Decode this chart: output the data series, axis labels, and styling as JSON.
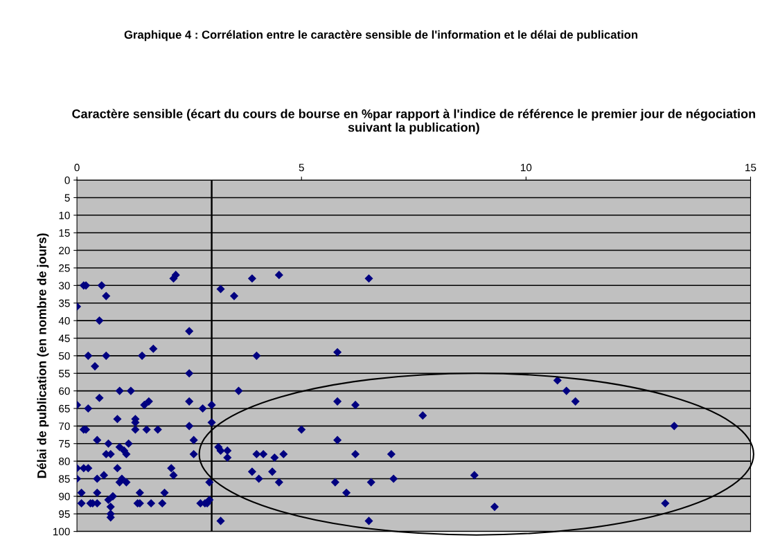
{
  "chart_data": {
    "type": "scatter",
    "title": "Graphique 4 : Corrélation entre le caractère sensible de l'information et le délai de publication",
    "xlabel": "Caractère sensible (écart du cours de bourse en %par rapport à l'indice de référence le premier jour de négociation suivant la publication)",
    "ylabel": "Délai de publication (en nombre de jours)",
    "series": [
      {
        "color": "#000080",
        "x": [
          2.2,
          2.15,
          3.9,
          4.5,
          6.5,
          0.15,
          0.2,
          0.55,
          3.2,
          3.5,
          0.65,
          0,
          0.5,
          2.5,
          1.7,
          0.25,
          0.65,
          1.45,
          4.0,
          5.8,
          0.4,
          2.5,
          10.7,
          10.9,
          11.1,
          0.95,
          1.2,
          3.6,
          0.5,
          0,
          1.5,
          1.6,
          2.5,
          2.8,
          3.0,
          5.8,
          6.2,
          0.25,
          0.9,
          1.3,
          1.3,
          3.0,
          7.7,
          1.3,
          1.55,
          1.8,
          0.15,
          0.2,
          2.5,
          5.0,
          13.3,
          0.45,
          2.6,
          5.8,
          1.15,
          0.7,
          0.95,
          1.05,
          1.1,
          0.65,
          0.75,
          2.6,
          3.15,
          3.2,
          3.35,
          3.35,
          4.0,
          4.15,
          4.4,
          4.6,
          6.2,
          7.0,
          0,
          0.15,
          0.25,
          0.9,
          2.1,
          3.9,
          4.35,
          2.15,
          0.6,
          0,
          0.45,
          1.0,
          1.1,
          0.95,
          4.05,
          7.05,
          8.85,
          2.95,
          4.5,
          5.75,
          6.55,
          0.1,
          0.45,
          1.4,
          1.95,
          6.0,
          0.8,
          0.7,
          2.95,
          2.9,
          0.1,
          0.3,
          0.35,
          0.45,
          1.35,
          1.4,
          1.65,
          1.9,
          2.75,
          2.85,
          13.1,
          9.3,
          0.75,
          0.75,
          0.75,
          3.2,
          6.5
        ],
        "values": [
          27,
          28,
          28,
          27,
          28,
          30,
          30,
          30,
          31,
          33,
          33,
          36,
          40,
          43,
          48,
          50,
          50,
          50,
          50,
          49,
          53,
          55,
          57,
          60,
          63,
          60,
          60,
          60,
          62,
          64,
          64,
          63,
          63,
          65,
          64,
          63,
          64,
          65,
          68,
          68,
          69,
          69,
          67,
          71,
          71,
          71,
          71,
          71,
          70,
          71,
          70,
          74,
          74,
          74,
          75,
          75,
          76,
          77,
          78,
          78,
          78,
          78,
          76,
          77,
          77,
          79,
          78,
          78,
          79,
          78,
          78,
          78,
          82,
          82,
          82,
          82,
          82,
          83,
          83,
          84,
          84,
          85,
          85,
          85,
          86,
          86,
          85,
          85,
          84,
          86,
          86,
          86,
          86,
          89,
          89,
          89,
          89,
          89,
          90,
          91,
          91,
          92,
          92,
          92,
          92,
          92,
          92,
          92,
          92,
          92,
          92,
          92,
          92,
          93,
          93,
          95,
          96,
          97,
          97
        ]
      }
    ],
    "xlim": [
      0,
      15
    ],
    "xticks": [
      0,
      5,
      10,
      15
    ],
    "ylim": [
      100,
      0
    ],
    "yticks": [
      0,
      5,
      10,
      15,
      20,
      25,
      30,
      35,
      40,
      45,
      50,
      55,
      60,
      65,
      70,
      75,
      80,
      85,
      90,
      95,
      100
    ],
    "grid": "y",
    "marker": "diamond",
    "ref_lines": [
      {
        "axis": "x",
        "value": 3,
        "color": "#000000"
      }
    ]
  }
}
